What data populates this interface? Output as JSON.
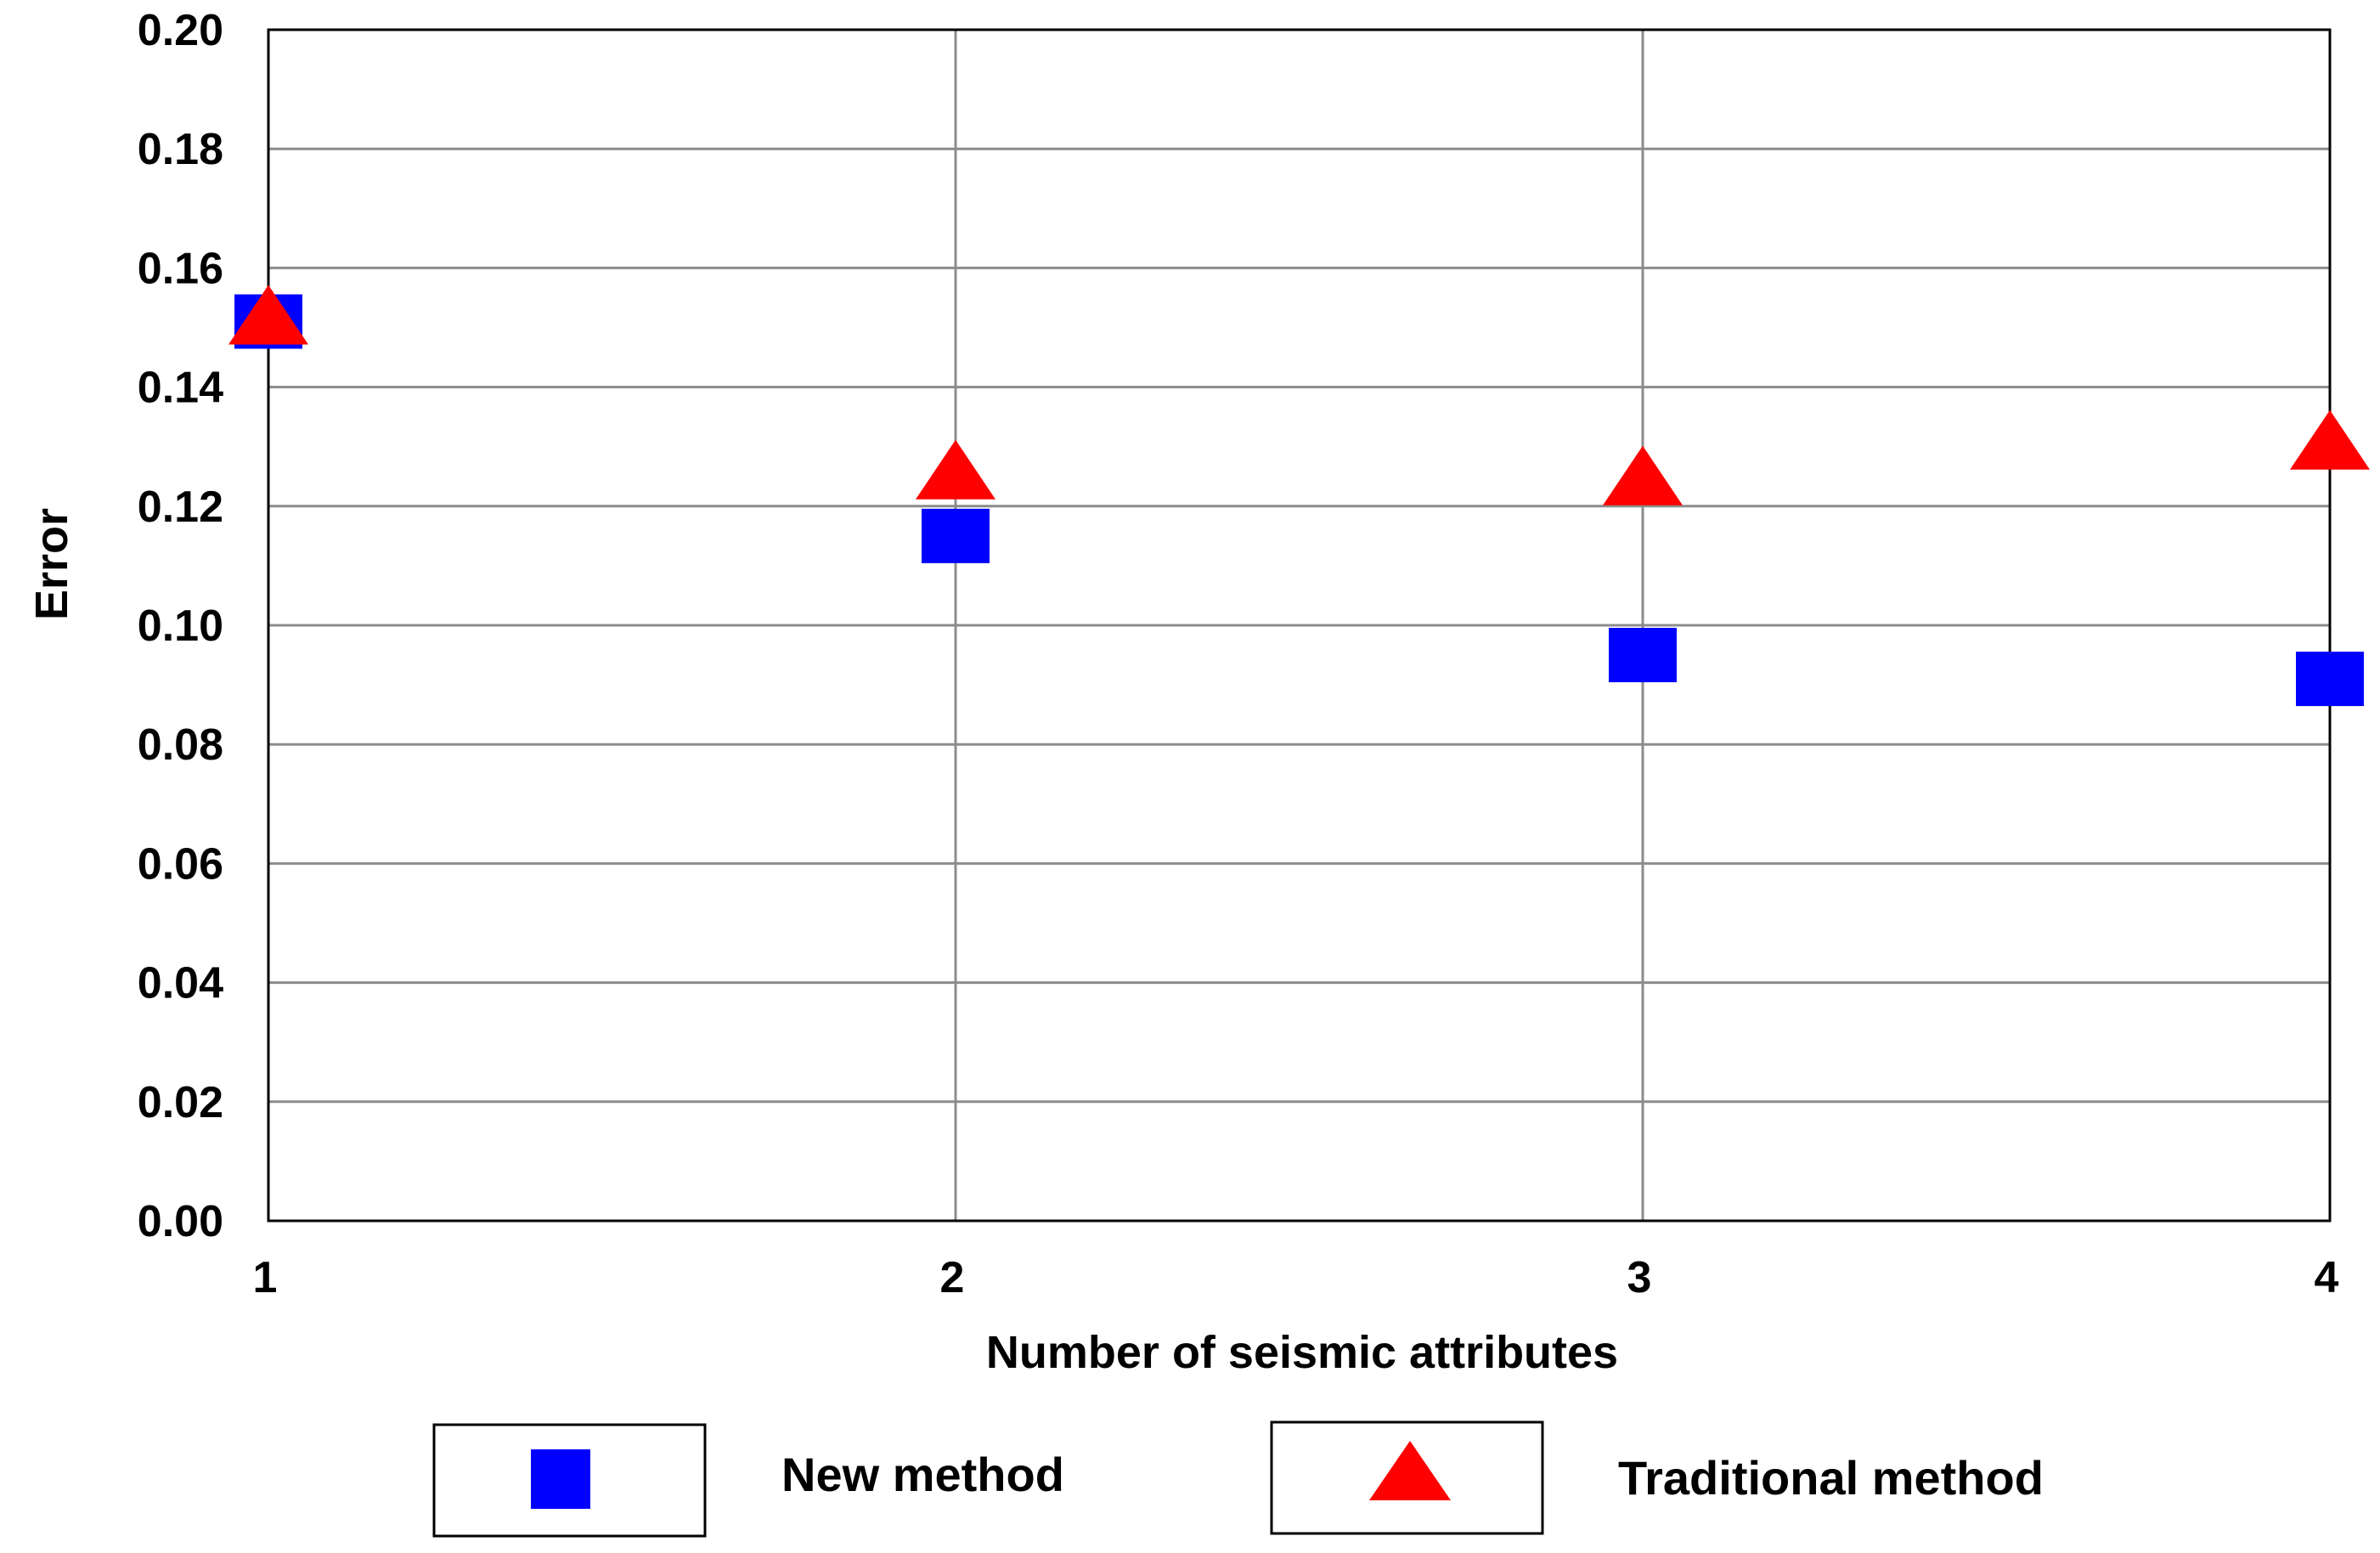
{
  "chart_data": {
    "type": "scatter",
    "title": "",
    "xlabel": "Number of seismic attributes",
    "ylabel": "Error",
    "x": [
      1,
      2,
      3,
      4
    ],
    "xlim": [
      1,
      4
    ],
    "ylim": [
      0.0,
      0.2
    ],
    "xticks": [
      "1",
      "2",
      "3",
      "4"
    ],
    "yticks": [
      "0.00",
      "0.02",
      "0.04",
      "0.06",
      "0.08",
      "0.10",
      "0.12",
      "0.14",
      "0.16",
      "0.18",
      "0.20"
    ],
    "grid": true,
    "legend_position": "bottom",
    "series": [
      {
        "name": "New method",
        "marker": "square",
        "color": "#0000ff",
        "values": [
          0.151,
          0.115,
          0.095,
          0.091
        ]
      },
      {
        "name": "Traditional method",
        "marker": "triangle",
        "color": "#ff0000",
        "values": [
          0.152,
          0.126,
          0.125,
          0.131
        ]
      }
    ]
  }
}
